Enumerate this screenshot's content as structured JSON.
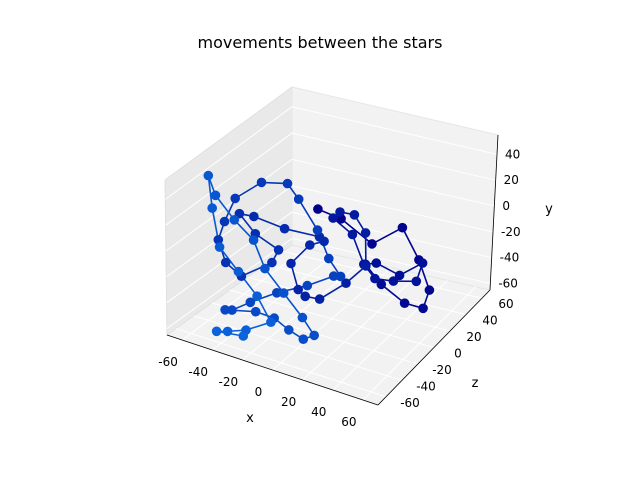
{
  "chart_data": {
    "type": "line3d",
    "title": "movements between the stars",
    "xlabel": "x",
    "ylabel": "y",
    "zlabel": "z",
    "xlim": [
      -70,
      70
    ],
    "ylim": [
      -65,
      55
    ],
    "zlim": [
      -70,
      70
    ],
    "x_ticks": [
      "-60",
      "-40",
      "-20",
      "0",
      "20",
      "40",
      "60"
    ],
    "y_ticks": [
      "-60",
      "-40",
      "-20",
      "0",
      "20",
      "40"
    ],
    "z_ticks": [
      "-60",
      "-40",
      "-20",
      "0",
      "20",
      "40",
      "60"
    ],
    "grid": true,
    "marker": "circle",
    "color_gradient": [
      "#00008b",
      "#0a64dc"
    ],
    "path_points_xyz": [
      [
        10,
        38,
        -30
      ],
      [
        20,
        28,
        -20
      ],
      [
        35,
        8,
        -10
      ],
      [
        50,
        20,
        0
      ],
      [
        58,
        -5,
        5
      ],
      [
        62,
        -30,
        10
      ],
      [
        55,
        -50,
        15
      ],
      [
        40,
        -55,
        20
      ],
      [
        30,
        -38,
        10
      ],
      [
        25,
        -18,
        0
      ],
      [
        35,
        -10,
        -5
      ],
      [
        45,
        -22,
        5
      ],
      [
        55,
        -15,
        15
      ],
      [
        48,
        -35,
        20
      ],
      [
        30,
        -45,
        25
      ],
      [
        15,
        -52,
        30
      ],
      [
        5,
        -48,
        35
      ],
      [
        -5,
        -32,
        40
      ],
      [
        -15,
        -20,
        35
      ],
      [
        -5,
        -5,
        25
      ],
      [
        10,
        5,
        15
      ],
      [
        20,
        -2,
        10
      ],
      [
        28,
        -15,
        -5
      ],
      [
        20,
        -25,
        -15
      ],
      [
        5,
        -40,
        -20
      ],
      [
        -10,
        -50,
        -10
      ],
      [
        -20,
        -55,
        0
      ],
      [
        -30,
        -45,
        10
      ],
      [
        -20,
        -30,
        15
      ],
      [
        -5,
        -15,
        5
      ],
      [
        0,
        0,
        -10
      ],
      [
        -15,
        10,
        -25
      ],
      [
        -30,
        20,
        -35
      ],
      [
        -45,
        10,
        -25
      ],
      [
        -40,
        -10,
        -15
      ],
      [
        -30,
        -25,
        -5
      ],
      [
        -40,
        -45,
        5
      ],
      [
        -55,
        -55,
        -5
      ],
      [
        -60,
        -40,
        -15
      ],
      [
        -62,
        -20,
        -20
      ],
      [
        -55,
        0,
        -25
      ],
      [
        -45,
        25,
        -30
      ],
      [
        -30,
        40,
        -25
      ],
      [
        -10,
        50,
        -30
      ],
      [
        0,
        45,
        -35
      ],
      [
        15,
        30,
        -40
      ],
      [
        25,
        15,
        -45
      ],
      [
        30,
        0,
        -40
      ],
      [
        20,
        -10,
        -30
      ],
      [
        5,
        -20,
        -35
      ],
      [
        -10,
        -25,
        -45
      ],
      [
        -25,
        -35,
        -50
      ],
      [
        -40,
        -50,
        -45
      ],
      [
        -50,
        -60,
        -35
      ],
      [
        -35,
        -62,
        -25
      ],
      [
        -20,
        -58,
        -30
      ],
      [
        -5,
        -55,
        -40
      ],
      [
        10,
        -50,
        -50
      ],
      [
        20,
        -40,
        -55
      ],
      [
        15,
        -25,
        -60
      ],
      [
        0,
        -15,
        -55
      ],
      [
        -15,
        -5,
        -50
      ],
      [
        -25,
        10,
        -45
      ],
      [
        -35,
        25,
        -50
      ],
      [
        -50,
        35,
        -45
      ],
      [
        -60,
        40,
        -35
      ],
      [
        -55,
        20,
        -40
      ],
      [
        -45,
        0,
        -50
      ],
      [
        -30,
        -10,
        -55
      ],
      [
        -15,
        -20,
        -60
      ],
      [
        -5,
        -35,
        -62
      ],
      [
        -20,
        -45,
        -65
      ],
      [
        -35,
        -55,
        -60
      ],
      [
        -45,
        -62,
        -55
      ],
      [
        -30,
        -63,
        -50
      ]
    ]
  }
}
